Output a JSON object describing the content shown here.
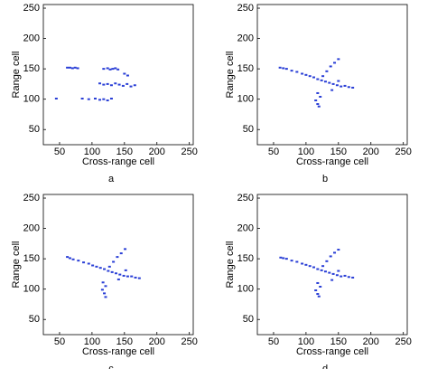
{
  "chart_data": [
    {
      "type": "scatter",
      "caption": "a",
      "xlabel": "Cross-range cell",
      "ylabel": "Range cell",
      "color": "#2a3fd6",
      "xlim": [
        25,
        256
      ],
      "ylim": [
        25,
        256
      ],
      "xticks": [
        50,
        100,
        150,
        200,
        250
      ],
      "yticks": [
        50,
        100,
        150,
        200,
        250
      ],
      "x": [
        62,
        66,
        70,
        74,
        78,
        118,
        124,
        128,
        132,
        136,
        140,
        112,
        118,
        124,
        130,
        136,
        142,
        148,
        154,
        160,
        166,
        45,
        85,
        95,
        105,
        112,
        118,
        124,
        130,
        150,
        155
      ],
      "y": [
        152,
        152,
        151,
        152,
        151,
        150,
        151,
        149,
        150,
        151,
        149,
        126,
        124,
        125,
        123,
        126,
        124,
        122,
        125,
        121,
        123,
        101,
        101,
        100,
        101,
        99,
        100,
        98,
        101,
        142,
        139
      ]
    },
    {
      "type": "scatter",
      "caption": "b",
      "xlabel": "Cross-range cell",
      "ylabel": "Range cell",
      "color": "#2a3fd6",
      "xlim": [
        25,
        256
      ],
      "ylim": [
        25,
        256
      ],
      "xticks": [
        50,
        100,
        150,
        200,
        250
      ],
      "yticks": [
        50,
        100,
        150,
        200,
        250
      ],
      "x": [
        60,
        65,
        70,
        78,
        86,
        94,
        100,
        106,
        112,
        118,
        124,
        130,
        136,
        142,
        148,
        154,
        160,
        166,
        172,
        126,
        132,
        138,
        144,
        150,
        118,
        122,
        115,
        118,
        120,
        140,
        150
      ],
      "y": [
        152,
        151,
        150,
        147,
        145,
        142,
        140,
        138,
        136,
        133,
        131,
        129,
        127,
        125,
        123,
        121,
        122,
        120,
        119,
        138,
        146,
        154,
        160,
        166,
        110,
        104,
        98,
        92,
        88,
        115,
        130
      ]
    },
    {
      "type": "scatter",
      "caption": "c",
      "xlabel": "Cross-range cell",
      "ylabel": "Range cell",
      "color": "#2a3fd6",
      "xlim": [
        25,
        256
      ],
      "ylim": [
        25,
        256
      ],
      "xticks": [
        50,
        100,
        150,
        200,
        250
      ],
      "yticks": [
        50,
        100,
        150,
        200,
        250
      ],
      "x": [
        62,
        66,
        71,
        79,
        87,
        95,
        101,
        107,
        113,
        119,
        125,
        131,
        137,
        143,
        149,
        155,
        161,
        167,
        173,
        127,
        133,
        139,
        145,
        151,
        117,
        121,
        116,
        119,
        121,
        141,
        152
      ],
      "y": [
        153,
        151,
        149,
        147,
        144,
        142,
        139,
        137,
        135,
        133,
        130,
        128,
        126,
        124,
        122,
        121,
        121,
        119,
        118,
        137,
        145,
        153,
        159,
        166,
        111,
        105,
        99,
        93,
        87,
        116,
        131
      ]
    },
    {
      "type": "scatter",
      "caption": "d",
      "xlabel": "Cross-range cell",
      "ylabel": "Range cell",
      "color": "#2a3fd6",
      "xlim": [
        25,
        256
      ],
      "ylim": [
        25,
        256
      ],
      "xticks": [
        50,
        100,
        150,
        200,
        250
      ],
      "yticks": [
        50,
        100,
        150,
        200,
        250
      ],
      "x": [
        61,
        65,
        70,
        78,
        86,
        94,
        100,
        106,
        112,
        118,
        124,
        130,
        136,
        142,
        148,
        154,
        160,
        166,
        172,
        126,
        132,
        138,
        144,
        150,
        118,
        122,
        115,
        118,
        120,
        140,
        150
      ],
      "y": [
        152,
        151,
        150,
        147,
        145,
        142,
        140,
        138,
        136,
        133,
        131,
        129,
        127,
        125,
        123,
        121,
        122,
        120,
        119,
        138,
        146,
        154,
        160,
        165,
        110,
        104,
        98,
        92,
        88,
        115,
        130
      ]
    }
  ]
}
